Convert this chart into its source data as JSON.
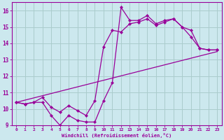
{
  "bg_color": "#cce8ee",
  "grid_color": "#aacccc",
  "line_color": "#990099",
  "xlabel": "Windchill (Refroidissement éolien,°C)",
  "xlabel_color": "#990099",
  "tick_color": "#990099",
  "xlim": [
    -0.5,
    23.5
  ],
  "ylim": [
    9,
    16.5
  ],
  "yticks": [
    9,
    10,
    11,
    12,
    13,
    14,
    15,
    16
  ],
  "xticks": [
    0,
    1,
    2,
    3,
    4,
    5,
    6,
    7,
    8,
    9,
    10,
    11,
    12,
    13,
    14,
    15,
    16,
    17,
    18,
    19,
    20,
    21,
    22,
    23
  ],
  "line1_x": [
    0,
    1,
    2,
    3,
    4,
    5,
    6,
    7,
    8,
    9,
    10,
    11,
    12,
    13,
    14,
    15,
    16,
    17,
    18,
    19,
    20,
    21,
    22,
    23
  ],
  "line1_y": [
    10.4,
    10.3,
    10.4,
    10.4,
    9.6,
    9.0,
    9.6,
    9.3,
    9.2,
    9.2,
    10.5,
    11.6,
    16.2,
    15.4,
    15.4,
    15.7,
    15.2,
    15.4,
    15.5,
    15.0,
    14.4,
    13.7,
    13.6,
    13.6
  ],
  "line2_x": [
    0,
    1,
    2,
    3,
    4,
    5,
    6,
    7,
    8,
    9,
    10,
    11,
    12,
    13,
    14,
    15,
    16,
    17,
    18,
    19,
    20,
    21,
    22,
    23
  ],
  "line2_y": [
    10.4,
    10.3,
    10.4,
    10.7,
    10.1,
    9.8,
    10.2,
    9.9,
    9.6,
    10.5,
    13.8,
    14.8,
    14.7,
    15.2,
    15.3,
    15.5,
    15.1,
    15.3,
    15.5,
    15.0,
    14.8,
    13.7,
    13.6,
    13.6
  ],
  "line3_x": [
    0,
    23
  ],
  "line3_y": [
    10.4,
    13.5
  ]
}
